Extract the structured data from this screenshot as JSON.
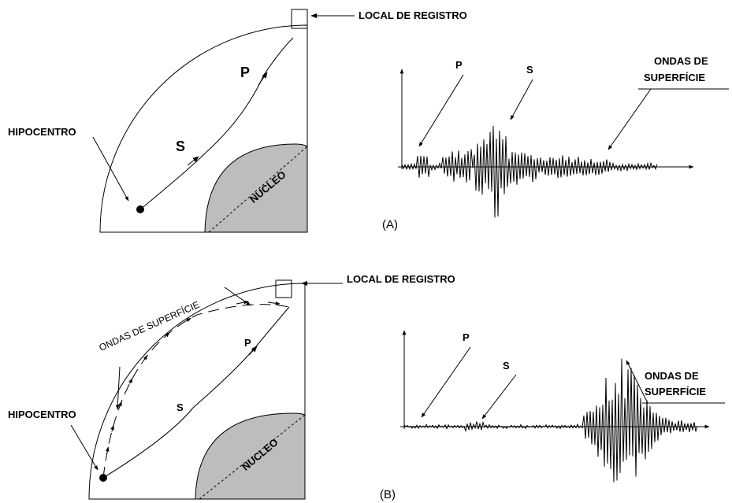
{
  "panels": [
    {
      "label": "(A)",
      "section": {
        "station": "LOCAL DE REGISTRO",
        "hypocenter": "HIPOCENTRO",
        "core": "NUCLEO",
        "p_wave": "P",
        "s_wave": "S"
      },
      "seismogram": {
        "p_wave": "P",
        "s_wave": "S",
        "surface_line1": "ONDAS DE",
        "surface_line2": "SUPERFÍCIE"
      }
    },
    {
      "label": "(B)",
      "section": {
        "station": "LOCAL DE REGISTRO",
        "hypocenter": "HIPOCENTRO",
        "core": "NUCLEO",
        "p_wave": "P",
        "s_wave": "S",
        "surface_waves": "ONDAS DE SUPERFÍCIE"
      },
      "seismogram": {
        "p_wave": "P",
        "s_wave": "S",
        "surface_line1": "ONDAS DE",
        "surface_line2": "SUPERFÍCIE"
      }
    }
  ]
}
